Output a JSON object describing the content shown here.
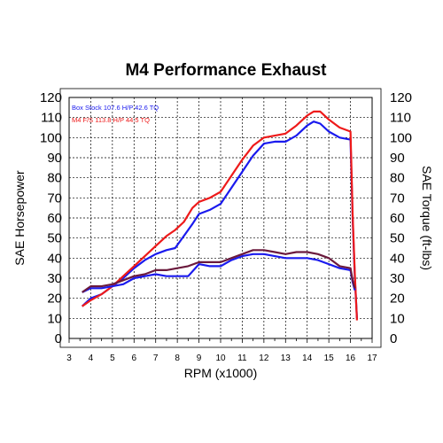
{
  "chart_data": {
    "type": "line",
    "title": "M4 Performance Exhaust",
    "xlabel": "RPM (x1000)",
    "ylabel_left": "SAE Horsepower",
    "ylabel_right": "SAE Torque (ft-lbs)",
    "xlim": [
      3,
      17
    ],
    "ylim": [
      0,
      120
    ],
    "x_ticks": [
      "3",
      "4",
      "5",
      "6",
      "7",
      "8",
      "9",
      "10",
      "11",
      "12",
      "13",
      "14",
      "15",
      "16",
      "17"
    ],
    "y_ticks": [
      "0",
      "10",
      "20",
      "30",
      "40",
      "50",
      "60",
      "70",
      "80",
      "90",
      "100",
      "110",
      "120"
    ],
    "grid": true,
    "legend_position": "top-left",
    "legend": [
      {
        "text": "Box Stock  107.6 H/P  42.6  TQ",
        "color": "#1a1aee"
      },
      {
        "text": "M4 F/S  113.8 H/P  44.5 TQ",
        "color": "#ee1a1a"
      }
    ],
    "series": [
      {
        "name": "Box Stock HP",
        "color": "#1a1aee",
        "x": [
          3.6,
          4.0,
          4.5,
          5.0,
          5.5,
          6.0,
          6.5,
          7.0,
          7.5,
          7.9,
          8.3,
          8.7,
          9.0,
          9.5,
          10.0,
          10.5,
          11.0,
          11.5,
          12.0,
          12.5,
          13.0,
          13.5,
          14.0,
          14.3,
          14.6,
          15.0,
          15.5,
          16.0,
          16.1,
          16.2,
          16.3
        ],
        "values": [
          16,
          20,
          22,
          26,
          30,
          35,
          39,
          42,
          44,
          45,
          51,
          57,
          62,
          64,
          67,
          75,
          83,
          91,
          97,
          98,
          98,
          101,
          106,
          108,
          107,
          103,
          100,
          99,
          60,
          30,
          10
        ]
      },
      {
        "name": "M4 F/S HP",
        "color": "#ee1a1a",
        "x": [
          3.6,
          4.0,
          4.5,
          5.0,
          5.5,
          6.0,
          6.5,
          7.0,
          7.5,
          7.9,
          8.3,
          8.7,
          9.0,
          9.5,
          10.0,
          10.5,
          11.0,
          11.5,
          12.0,
          12.5,
          13.0,
          13.5,
          14.0,
          14.3,
          14.6,
          15.0,
          15.5,
          16.0,
          16.1,
          16.2,
          16.3
        ],
        "values": [
          16,
          19,
          22,
          26,
          31,
          36,
          41,
          46,
          51,
          54,
          58,
          65,
          68,
          70,
          73,
          81,
          89,
          96,
          100,
          101,
          102,
          106,
          111,
          113,
          113,
          109,
          105,
          103,
          62,
          32,
          9
        ]
      },
      {
        "name": "Box Stock TQ",
        "color": "#1a1aee",
        "x": [
          3.6,
          4.0,
          4.5,
          5.0,
          5.5,
          6.0,
          6.5,
          7.0,
          7.5,
          8.0,
          8.5,
          9.0,
          9.5,
          10.0,
          10.5,
          11.0,
          11.5,
          12.0,
          12.5,
          13.0,
          13.5,
          14.0,
          14.5,
          15.0,
          15.5,
          16.0,
          16.1,
          16.2
        ],
        "values": [
          23,
          25,
          25,
          26,
          27,
          30,
          31,
          32,
          31,
          31,
          31,
          37,
          36,
          36,
          39,
          41,
          42,
          42,
          41,
          40,
          40,
          40,
          39,
          37,
          35,
          34,
          28,
          24
        ]
      },
      {
        "name": "M4 F/S TQ",
        "color": "#ee1a1a",
        "x": [
          3.6,
          4.0,
          4.5,
          5.0,
          5.5,
          6.0,
          6.5,
          7.0,
          7.5,
          8.0,
          8.5,
          9.0,
          9.5,
          10.0,
          10.5,
          11.0,
          11.5,
          12.0,
          12.5,
          13.0,
          13.5,
          14.0,
          14.5,
          15.0,
          15.5,
          16.0,
          16.1,
          16.2
        ],
        "values": [
          23,
          26,
          26,
          27,
          29,
          31,
          32,
          34,
          34,
          35,
          36,
          38,
          38,
          38,
          40,
          42,
          44,
          44,
          43,
          42,
          43,
          43,
          42,
          40,
          36,
          35,
          29,
          25
        ]
      }
    ]
  },
  "marks": {
    "plot_fill": "#ffffff",
    "grid_color": "#000000",
    "frame_color": "#000000",
    "torque_series_dark": "#6b1a3d"
  }
}
